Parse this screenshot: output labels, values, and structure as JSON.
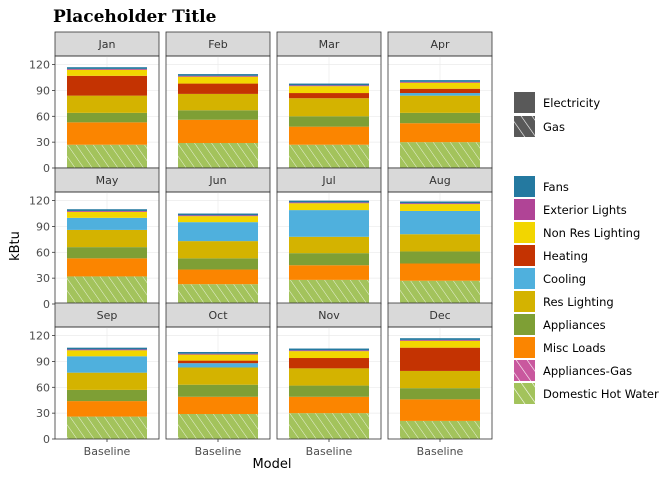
{
  "chart_data": {
    "type": "bar",
    "stacked": true,
    "facet": "month",
    "title": "Placeholder Title",
    "xlabel": "Model",
    "ylabel": "kBtu",
    "categories": [
      "Baseline"
    ],
    "ylim": [
      0,
      130
    ],
    "yticks": [
      0,
      30,
      60,
      90,
      120
    ],
    "grid": true,
    "legend_position": "right",
    "fuel_legend": [
      {
        "name": "Electricity",
        "pattern": "solid"
      },
      {
        "name": "Gas",
        "pattern": "hatched"
      }
    ],
    "enduse_legend": [
      {
        "name": "Fans",
        "color": "#2479a0"
      },
      {
        "name": "Exterior Lights",
        "color": "#b04496"
      },
      {
        "name": "Non Res Lighting",
        "color": "#f2d600"
      },
      {
        "name": "Heating",
        "color": "#c43302"
      },
      {
        "name": "Cooling",
        "color": "#4fb0dd"
      },
      {
        "name": "Res Lighting",
        "color": "#d4b300"
      },
      {
        "name": "Appliances",
        "color": "#7e9f35"
      },
      {
        "name": "Misc Loads",
        "color": "#fb8500"
      },
      {
        "name": "Appliances-Gas",
        "color": "#c9589e",
        "pattern": "hatched"
      },
      {
        "name": "Domestic Hot Water",
        "color": "#a3c35c",
        "pattern": "hatched"
      }
    ],
    "stack_order": [
      "Domestic Hot Water",
      "Misc Loads",
      "Appliances",
      "Res Lighting",
      "Cooling",
      "Heating",
      "Non Res Lighting",
      "Exterior Lights",
      "Fans"
    ],
    "panels": [
      {
        "month": "Jan",
        "values": {
          "Domestic Hot Water": 27,
          "Misc Loads": 26,
          "Appliances": 11,
          "Res Lighting": 20,
          "Cooling": 0,
          "Heating": 23,
          "Non Res Lighting": 7,
          "Exterior Lights": 1,
          "Fans": 2
        }
      },
      {
        "month": "Feb",
        "values": {
          "Domestic Hot Water": 29,
          "Misc Loads": 27,
          "Appliances": 11,
          "Res Lighting": 19,
          "Cooling": 0,
          "Heating": 12,
          "Non Res Lighting": 8,
          "Exterior Lights": 1,
          "Fans": 2
        }
      },
      {
        "month": "Mar",
        "values": {
          "Domestic Hot Water": 27,
          "Misc Loads": 21,
          "Appliances": 12,
          "Res Lighting": 21,
          "Cooling": 0,
          "Heating": 6,
          "Non Res Lighting": 8,
          "Exterior Lights": 1,
          "Fans": 2
        }
      },
      {
        "month": "Apr",
        "values": {
          "Domestic Hot Water": 30,
          "Misc Loads": 22,
          "Appliances": 12,
          "Res Lighting": 20,
          "Cooling": 3,
          "Heating": 5,
          "Non Res Lighting": 7,
          "Exterior Lights": 1,
          "Fans": 2
        }
      },
      {
        "month": "May",
        "values": {
          "Domestic Hot Water": 32,
          "Misc Loads": 21,
          "Appliances": 13,
          "Res Lighting": 20,
          "Cooling": 14,
          "Heating": 0,
          "Non Res Lighting": 7,
          "Exterior Lights": 1,
          "Fans": 2
        }
      },
      {
        "month": "Jun",
        "values": {
          "Domestic Hot Water": 23,
          "Misc Loads": 17,
          "Appliances": 13,
          "Res Lighting": 20,
          "Cooling": 22,
          "Heating": 0,
          "Non Res Lighting": 7,
          "Exterior Lights": 1,
          "Fans": 2
        }
      },
      {
        "month": "Jul",
        "values": {
          "Domestic Hot Water": 28,
          "Misc Loads": 17,
          "Appliances": 14,
          "Res Lighting": 19,
          "Cooling": 31,
          "Heating": 0,
          "Non Res Lighting": 8,
          "Exterior Lights": 1,
          "Fans": 2
        }
      },
      {
        "month": "Aug",
        "values": {
          "Domestic Hot Water": 27,
          "Misc Loads": 20,
          "Appliances": 14,
          "Res Lighting": 20,
          "Cooling": 27,
          "Heating": 0,
          "Non Res Lighting": 8,
          "Exterior Lights": 1,
          "Fans": 2
        }
      },
      {
        "month": "Sep",
        "values": {
          "Domestic Hot Water": 26,
          "Misc Loads": 18,
          "Appliances": 13,
          "Res Lighting": 20,
          "Cooling": 19,
          "Heating": 0,
          "Non Res Lighting": 7,
          "Exterior Lights": 1,
          "Fans": 2
        }
      },
      {
        "month": "Oct",
        "values": {
          "Domestic Hot Water": 29,
          "Misc Loads": 20,
          "Appliances": 14,
          "Res Lighting": 20,
          "Cooling": 5,
          "Heating": 3,
          "Non Res Lighting": 7,
          "Exterior Lights": 1,
          "Fans": 2
        }
      },
      {
        "month": "Nov",
        "values": {
          "Domestic Hot Water": 30,
          "Misc Loads": 19,
          "Appliances": 13,
          "Res Lighting": 20,
          "Cooling": 0,
          "Heating": 12,
          "Non Res Lighting": 8,
          "Exterior Lights": 1,
          "Fans": 2
        }
      },
      {
        "month": "Dec",
        "values": {
          "Domestic Hot Water": 21,
          "Misc Loads": 25,
          "Appliances": 13,
          "Res Lighting": 20,
          "Cooling": 0,
          "Heating": 27,
          "Non Res Lighting": 8,
          "Exterior Lights": 1,
          "Fans": 2
        }
      }
    ]
  }
}
